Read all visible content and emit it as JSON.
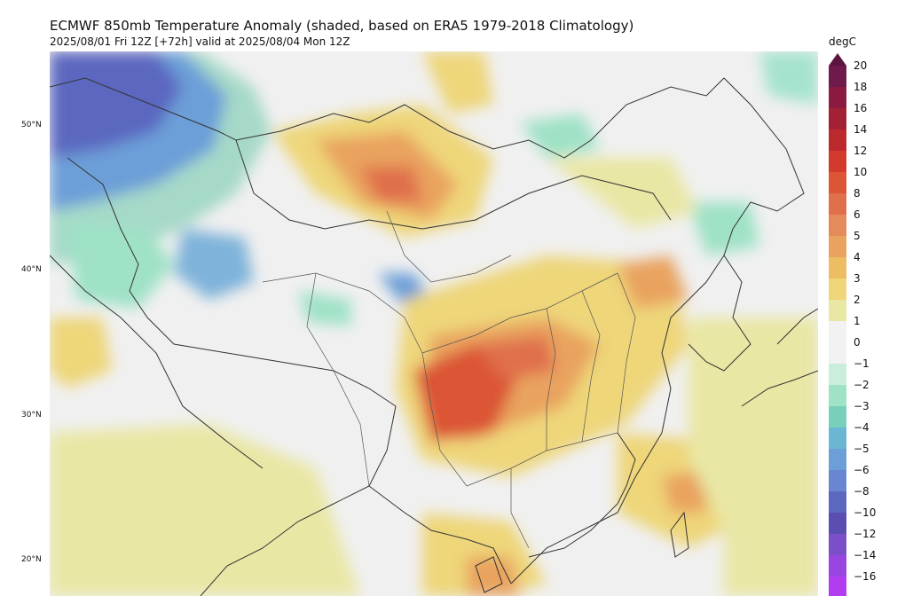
{
  "title": "ECMWF 850mb Temperature Anomaly (shaded, based on ERA5 1979-2018 Climatology)",
  "subtitle": "2025/08/01 Fri 12Z [+72h] valid at 2025/08/04 Mon 12Z",
  "lat_labels": [
    "50°N",
    "40°N",
    "30°N",
    "20°N"
  ],
  "colorbar": {
    "unit": "degC",
    "ticks": [
      "20",
      "18",
      "16",
      "14",
      "12",
      "10",
      "8",
      "6",
      "5",
      "4",
      "3",
      "2",
      "1",
      "0",
      "−1",
      "−2",
      "−3",
      "−4",
      "−5",
      "−6",
      "−8",
      "−10",
      "−12",
      "−14",
      "−16"
    ],
    "colors": [
      "#6e1a4a",
      "#8a1a40",
      "#a32035",
      "#bd2a2e",
      "#d23b2c",
      "#dc5535",
      "#e06f4b",
      "#e58a5b",
      "#e9a35f",
      "#ecbd62",
      "#eed679",
      "#e9e7a4",
      "#f2f2f2",
      "#f2f2f2",
      "#c9efdc",
      "#9fe2c6",
      "#78d0bb",
      "#6bb6d3",
      "#6c9fd8",
      "#6a86d3",
      "#5c67c0",
      "#5a4fb0",
      "#7b4fc8",
      "#9a44e2",
      "#b13cf0"
    ],
    "colors_note": "positive anomalies in yellow-orange-red, negative in cyan-blue-purple"
  }
}
